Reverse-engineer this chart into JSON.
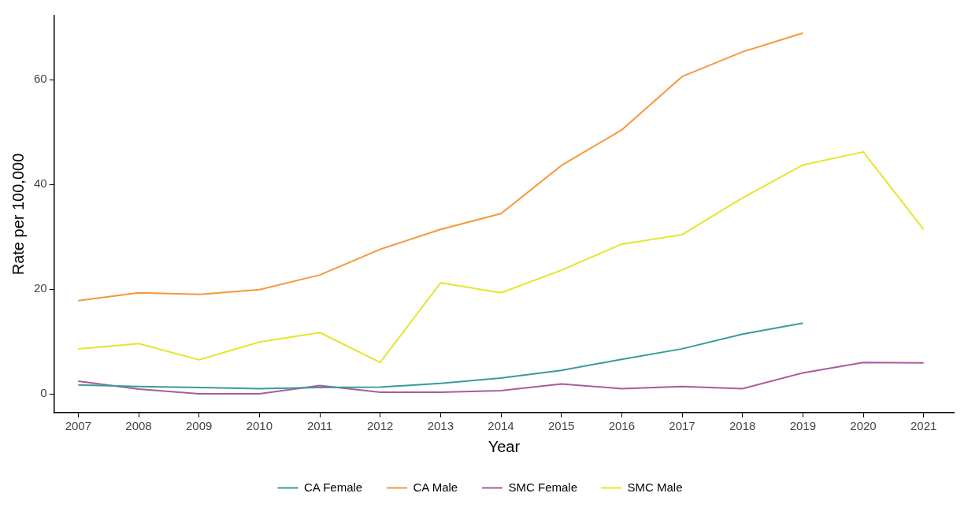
{
  "chart_data": {
    "type": "line",
    "xlabel": "Year",
    "ylabel": "Rate per 100,000",
    "x": [
      2007,
      2008,
      2009,
      2010,
      2011,
      2012,
      2013,
      2014,
      2015,
      2016,
      2017,
      2018,
      2019,
      2020,
      2021
    ],
    "xlim": [
      2006.6,
      2021.5
    ],
    "xticks": [
      2007,
      2008,
      2009,
      2010,
      2011,
      2012,
      2013,
      2014,
      2015,
      2016,
      2017,
      2018,
      2019,
      2020,
      2021
    ],
    "ylim": [
      -3.6,
      72.2
    ],
    "yticks": [
      0,
      20,
      40,
      60
    ],
    "series": [
      {
        "name": "CA Female",
        "color": "#3a9a9a",
        "values": [
          1.7,
          1.4,
          1.2,
          1.0,
          1.2,
          1.3,
          2.0,
          3.0,
          4.5,
          6.6,
          8.6,
          11.4,
          13.5,
          null,
          null
        ]
      },
      {
        "name": "CA Male",
        "color": "#f8963a",
        "values": [
          17.8,
          19.3,
          19.0,
          19.9,
          22.7,
          27.6,
          31.4,
          34.4,
          43.6,
          50.4,
          60.6,
          65.3,
          68.9,
          null,
          null
        ]
      },
      {
        "name": "SMC Female",
        "color": "#aa5c9c",
        "values": [
          2.4,
          0.9,
          0,
          0,
          1.6,
          0.3,
          0.3,
          0.6,
          1.9,
          1.0,
          1.4,
          1.0,
          4.0,
          6.0,
          5.9
        ]
      },
      {
        "name": "SMC Male",
        "color": "#e5e52a",
        "values": [
          8.6,
          9.6,
          6.5,
          9.9,
          11.7,
          6.0,
          21.2,
          19.3,
          23.6,
          28.6,
          30.4,
          37.4,
          43.7,
          46.2,
          31.4
        ]
      }
    ],
    "grid": false,
    "legend": "bottom",
    "marker": "none",
    "line_style": "solid"
  }
}
